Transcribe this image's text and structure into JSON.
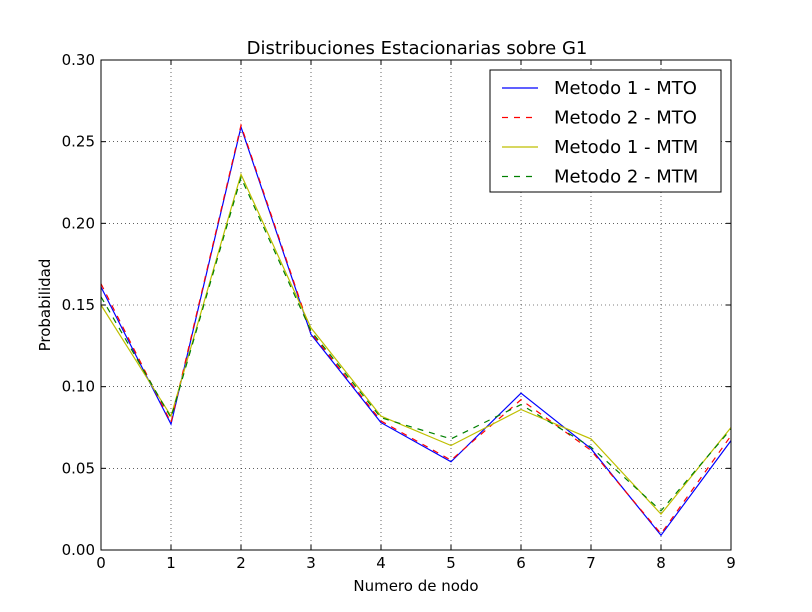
{
  "chart_data": {
    "type": "line",
    "title": "Distribuciones Estacionarias sobre G1",
    "xlabel": "Numero de nodo",
    "ylabel": "Probabilidad",
    "xlim": [
      0,
      9
    ],
    "ylim": [
      0,
      0.3
    ],
    "x_ticks": [
      0,
      1,
      2,
      3,
      4,
      5,
      6,
      7,
      8,
      9
    ],
    "x_tick_labels": [
      "0",
      "1",
      "2",
      "3",
      "4",
      "5",
      "6",
      "7",
      "8",
      "9"
    ],
    "y_ticks": [
      0,
      0.05,
      0.1,
      0.15,
      0.2,
      0.25,
      0.3
    ],
    "y_tick_labels": [
      "0.00",
      "0.05",
      "0.10",
      "0.15",
      "0.20",
      "0.25",
      "0.30"
    ],
    "grid": true,
    "legend_position": "top-right",
    "x": [
      0,
      1,
      2,
      3,
      4,
      5,
      6,
      7,
      8,
      9
    ],
    "series": [
      {
        "name": "Metodo 1 - MTO",
        "color": "#0000ff",
        "dash": "solid",
        "values": [
          0.161,
          0.077,
          0.259,
          0.132,
          0.078,
          0.054,
          0.096,
          0.062,
          0.009,
          0.067
        ]
      },
      {
        "name": "Metodo 2 - MTO",
        "color": "#ff0000",
        "dash": "dashed",
        "values": [
          0.163,
          0.078,
          0.26,
          0.133,
          0.079,
          0.055,
          0.092,
          0.061,
          0.01,
          0.07
        ]
      },
      {
        "name": "Metodo 1 - MTM",
        "color": "#bfbf00",
        "dash": "solid",
        "values": [
          0.15,
          0.082,
          0.23,
          0.136,
          0.082,
          0.064,
          0.086,
          0.068,
          0.022,
          0.075
        ]
      },
      {
        "name": "Metodo 2 - MTM",
        "color": "#008000",
        "dash": "dashed",
        "values": [
          0.155,
          0.081,
          0.228,
          0.134,
          0.081,
          0.068,
          0.089,
          0.063,
          0.024,
          0.074
        ]
      }
    ]
  }
}
